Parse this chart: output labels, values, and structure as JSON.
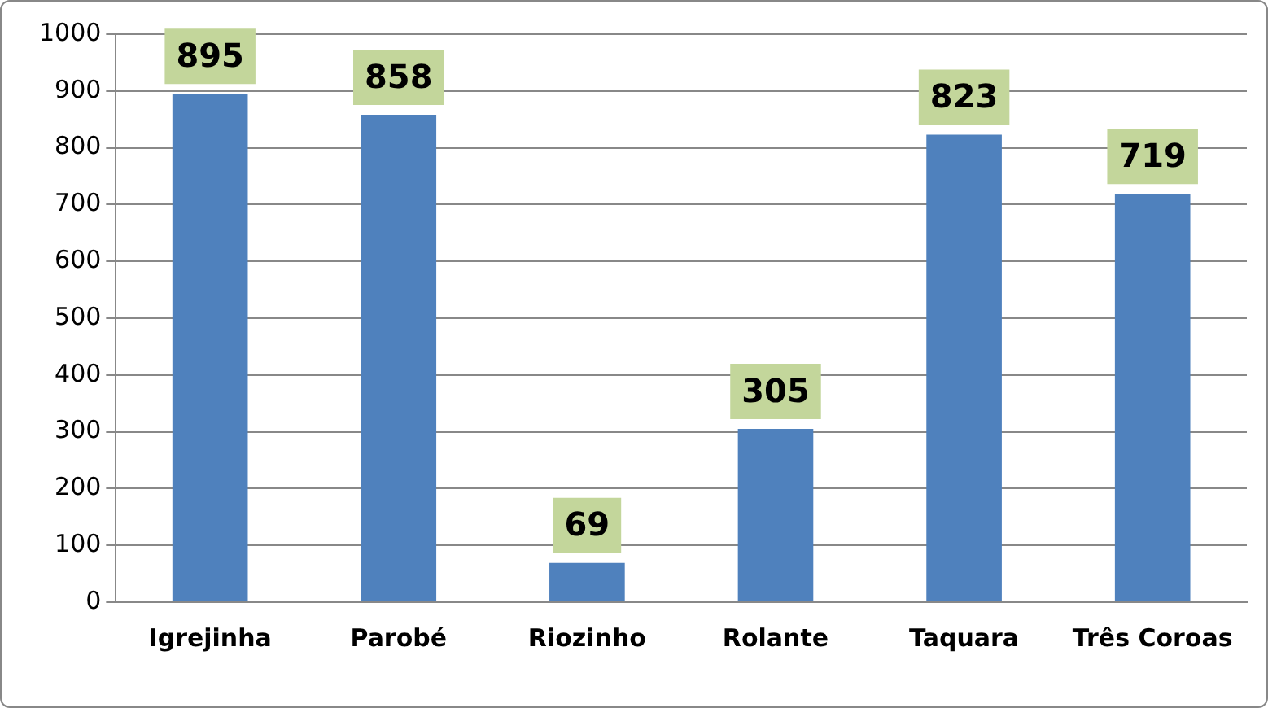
{
  "chart_data": {
    "type": "bar",
    "categories": [
      "Igrejinha",
      "Parobé",
      "Riozinho",
      "Rolante",
      "Taquara",
      "Três Coroas"
    ],
    "values": [
      895,
      858,
      69,
      305,
      823,
      719
    ],
    "color": "#4f81bd",
    "ylim": [
      0,
      1000
    ],
    "yticks": [
      0,
      100,
      200,
      300,
      400,
      500,
      600,
      700,
      800,
      900,
      1000
    ],
    "grid": "y",
    "legend": false,
    "data_labels": true
  }
}
